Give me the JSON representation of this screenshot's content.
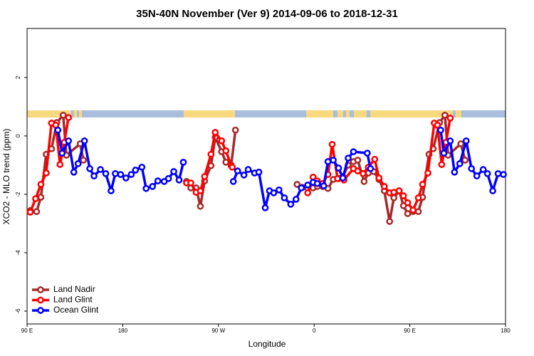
{
  "chart_data": {
    "type": "line",
    "title": "35N-40N November (Ver 9)   2014-09-06 to 2018-12-31",
    "x_label": "Longitude",
    "y_label": "XCO2 - MLO trend (ppm)",
    "xlim": [
      90,
      540
    ],
    "xticks": [
      {
        "value": 90,
        "label": "90 E"
      },
      {
        "value": 180,
        "label": "180"
      },
      {
        "value": 270,
        "label": "90 W"
      },
      {
        "value": 360,
        "label": "0"
      },
      {
        "value": 450,
        "label": "90 E"
      },
      {
        "value": 540,
        "label": "180"
      }
    ],
    "ylim": [
      -6.44,
      3.68
    ],
    "yticks": [
      -6,
      -4,
      -2,
      0,
      2
    ],
    "legend": "bottomleft",
    "series": [
      {
        "name": "Land Nadir",
        "color": "#a52a2a",
        "x": [
          93,
          99,
          103,
          108,
          113,
          118,
          124,
          127,
          140,
          143,
          null,
          240,
          244,
          249,
          253,
          257,
          263,
          267,
          273,
          277,
          282,
          286,
          null,
          344,
          349,
          354,
          359,
          363,
          368,
          373,
          378,
          383,
          387,
          392,
          397,
          401,
          407,
          411,
          416,
          421,
          426,
          431,
          435,
          440,
          444,
          448,
          453,
          458,
          462,
          468,
          472,
          478,
          483,
          486,
          498,
          502
        ],
        "values": [
          -2.56,
          -2.59,
          -2.1,
          -0.63,
          -0.44,
          0.46,
          0.71,
          -0.66,
          -0.27,
          -0.83,
          null,
          -1.56,
          -1.78,
          -1.78,
          -2.41,
          -1.54,
          -1.02,
          -0.05,
          -0.54,
          -0.9,
          -1.0,
          0.2,
          null,
          -1.66,
          -1.76,
          -1.8,
          -1.78,
          -1.73,
          -1.73,
          -1.8,
          -1.49,
          -1.46,
          -1.39,
          -1.0,
          -0.88,
          -0.83,
          -1.56,
          -1.27,
          -1.22,
          -1.49,
          -1.88,
          -2.93,
          -2.12,
          -1.88,
          -2.39,
          -2.66,
          -2.59,
          -2.59,
          -2.1,
          -0.63,
          -0.44,
          0.46,
          0.71,
          -0.66,
          -0.27,
          -0.83
        ]
      },
      {
        "name": "Land Glint",
        "color": "#ff0000",
        "x": [
          93,
          98,
          103,
          108,
          113,
          117,
          121,
          125,
          129,
          null,
          240,
          244,
          249,
          253,
          257,
          263,
          267,
          273,
          277,
          282,
          283,
          null,
          354,
          359,
          363,
          368,
          373,
          377,
          382,
          388,
          397,
          401,
          406,
          411,
          417,
          421,
          426,
          431,
          435,
          440,
          444,
          448,
          453,
          458,
          462,
          467,
          473,
          476,
          480,
          484,
          488
        ],
        "values": [
          -2.61,
          -2.15,
          -1.66,
          -1.27,
          0.44,
          0.37,
          -0.98,
          -0.22,
          0.63,
          null,
          -1.61,
          -1.61,
          -1.93,
          -1.88,
          -1.39,
          -0.63,
          0.12,
          -0.17,
          -0.51,
          -1.02,
          -1.07,
          null,
          -1.95,
          -1.41,
          -1.54,
          -1.63,
          -1.32,
          -0.29,
          -1.46,
          -1.51,
          -1.12,
          -1.2,
          -1.29,
          -1.07,
          -0.8,
          -1.44,
          -1.73,
          -1.95,
          -1.93,
          -1.88,
          -2.05,
          -2.29,
          -2.54,
          -2.12,
          -1.66,
          -1.27,
          0.44,
          0.37,
          -0.98,
          -0.22,
          0.61
        ]
      },
      {
        "name": "Ocean Glint",
        "color": "#0000ff",
        "x": [
          119,
          123,
          129,
          134,
          138,
          144,
          149,
          153,
          159,
          164,
          169,
          173,
          178,
          183,
          188,
          192,
          198,
          202,
          208,
          213,
          219,
          223,
          228,
          233,
          237,
          null,
          284,
          288,
          294,
          298,
          304,
          308,
          314,
          318,
          322,
          327,
          332,
          338,
          343,
          348,
          354,
          359,
          363,
          369,
          373,
          378,
          383,
          387,
          392,
          397,
          410,
          413,
          null,
          479,
          482,
          488,
          492,
          497,
          503,
          508,
          513,
          519,
          523,
          528,
          533,
          538
        ],
        "values": [
          0.2,
          -0.59,
          -0.17,
          -1.24,
          -0.95,
          -0.17,
          -1.12,
          -1.37,
          -1.15,
          -1.29,
          -1.88,
          -1.29,
          -1.32,
          -1.44,
          -1.32,
          -1.17,
          -1.07,
          -1.8,
          -1.73,
          -1.54,
          -1.56,
          -1.46,
          -1.22,
          -1.51,
          -0.9,
          null,
          -1.56,
          -1.2,
          -1.34,
          -1.15,
          -1.27,
          -1.24,
          -2.46,
          -1.88,
          -1.95,
          -1.85,
          -2.12,
          -2.34,
          -2.17,
          -1.78,
          -1.68,
          -1.59,
          -1.63,
          -1.71,
          -0.88,
          -0.83,
          -1.1,
          -1.44,
          -0.76,
          -0.54,
          -0.59,
          -1.12,
          null,
          0.2,
          -0.59,
          -0.17,
          -1.24,
          -0.95,
          -0.17,
          -1.12,
          -1.37,
          -1.15,
          -1.29,
          -1.88,
          -1.29,
          -1.32
        ]
      }
    ]
  }
}
